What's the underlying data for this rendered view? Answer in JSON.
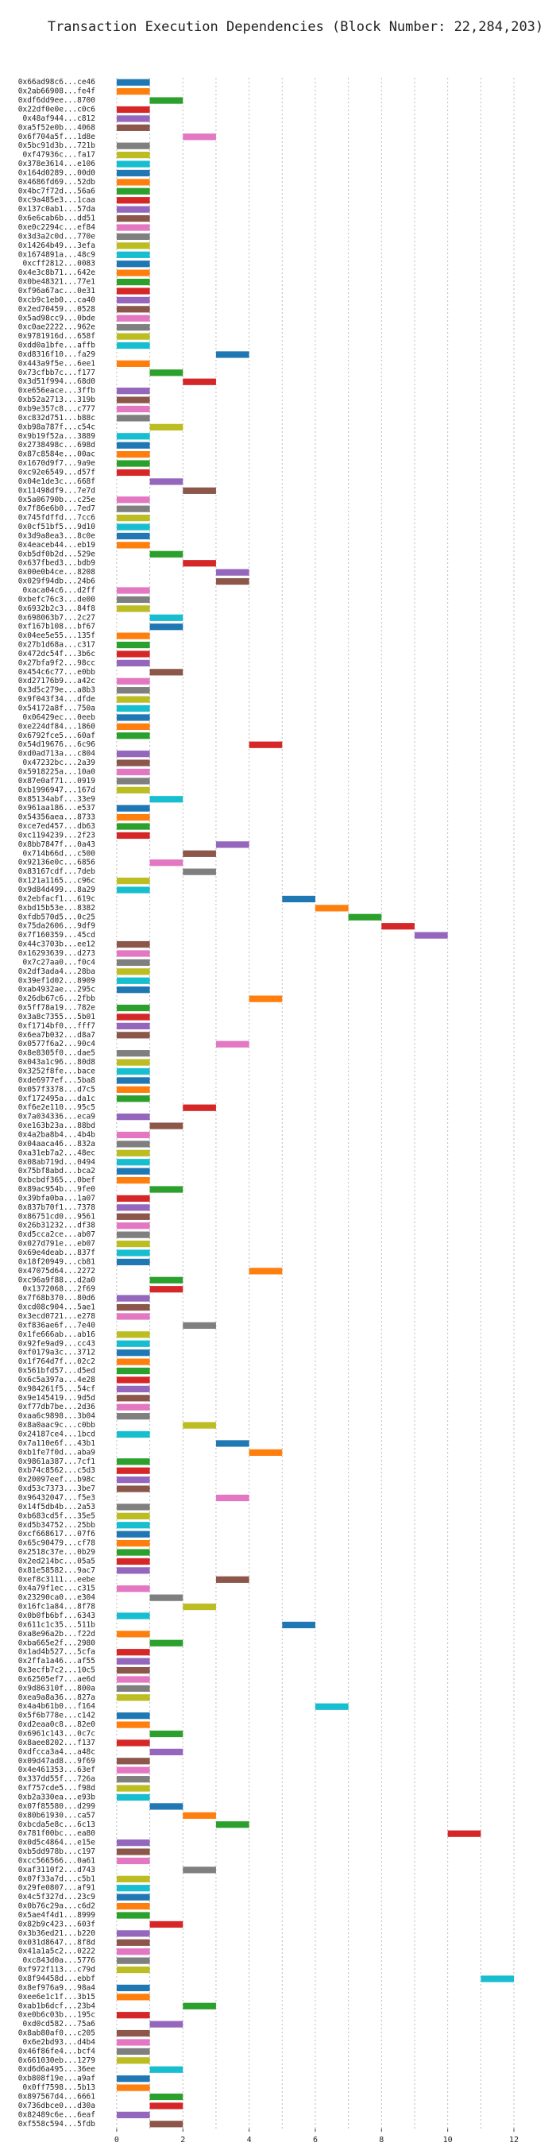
{
  "chart_data": {
    "type": "gantt",
    "title": "Transaction Execution Dependencies (Block Number: 22,284,203)",
    "categories": [
      "0x66ad98c6...ce46",
      "0x2ab66908...fe4f",
      "0xdf6dd9ee...8700",
      "0x22df0e0e...c0c6",
      "0x48af944...c812",
      "0xa5f52e0b...4068",
      "0x6f704a5f...1d8e",
      "0x5bc91d3b...721b",
      "0xf47936c...fa17",
      "0x378e3614...e106",
      "0x164d0289...00d0",
      "0x4686fd69...52db",
      "0x4bc7f72d...56a6",
      "0xc9a485e3...1caa",
      "0x137c0ab1...57da",
      "0x6e6cab6b...dd51",
      "0xe0c2294c...ef84",
      "0x3d3a2c0d...770e",
      "0x14264b49...3efa",
      "0x1674891a...48c9",
      "0xcff2812...0083",
      "0x4e3c8b71...642e",
      "0x0be48321...77e1",
      "0xf96a67ac...0e31",
      "0xcb9c1eb0...ca40",
      "0x2ed70459...0528",
      "0x5ad98cc9...0bde",
      "0xc0ae2222...962e",
      "0x9781916d...658f",
      "0xdd0a1bfe...affb",
      "0xd8316f10...fa29",
      "0x443a9f5e...6ee1",
      "0x73cfbb7c...f177",
      "0x3d51f994...68d0",
      "0xe656eace...3ffb",
      "0xb52a2713...319b",
      "0xb9e357c8...c777",
      "0xc832d751...b88c",
      "0xb98a787f...c54c",
      "0x9b19f52a...3889",
      "0x2738498c...698d",
      "0x87c8584e...00ac",
      "0x1670d9f7...9a9e",
      "0xc92e6549...d57f",
      "0x04e1de3c...668f",
      "0x11498df9...7e7d",
      "0x5a06790b...c25e",
      "0x7f86e6b0...7ed7",
      "0x745fdffd...7cc6",
      "0x0cf51bf5...9d10",
      "0x3d9a8ea3...8c0e",
      "0x4eaceb44...eb19",
      "0xb5df0b2d...529e",
      "0x637fbed3...bdb9",
      "0x00e0b4ce...8208",
      "0x029f94db...24b6",
      "0xaca04c6...d2ff",
      "0xbefc76c3...de00",
      "0x6932b2c3...84f8",
      "0x698063b7...2c27",
      "0xf167b108...bf67",
      "0x04ee5e55...135f",
      "0x27b1d68a...c317",
      "0x472dc54f...3b6c",
      "0x27bfa9f2...98cc",
      "0x454c6c77...e0bb",
      "0xd27176b9...a42c",
      "0x3d5c279e...a8b3",
      "0x9f043f34...dfde",
      "0x54172a8f...750a",
      "0x06429ec...0eeb",
      "0xe224df84...1860",
      "0x6792fce5...60af",
      "0x54d19676...6c96",
      "0xd0ad713a...c804",
      "0x47232bc...2a39",
      "0x5918225a...10a0",
      "0x87e0af71...0919",
      "0xb1996947...167d",
      "0x85134abf...33e9",
      "0x961aa186...e537",
      "0x54356aea...8733",
      "0xce7ed457...db63",
      "0xc1194239...2f23",
      "0x8bb7847f...0a43",
      "0x714b66d...c500",
      "0x92136e0c...6856",
      "0x83167cdf...7deb",
      "0x121a1165...c96c",
      "0x9d84d499...8a29",
      "0x2ebfacf1...619c",
      "0xbd15b53e...8382",
      "0xfdb570d5...0c25",
      "0x75da2606...9df9",
      "0x7f160359...45cd",
      "0x44c3703b...ee12",
      "0x16293639...d273",
      "0x7c27aa0...f0c4",
      "0x2df3ada4...28ba",
      "0x39ef1d02...8909",
      "0xab4932ae...295c",
      "0x26db67c6...2fbb",
      "0x5ff78a19...782e",
      "0x3a8c7355...5b01",
      "0xf1714bf0...fff7",
      "0x6ea7b032...d8a7",
      "0x0577f6a2...90c4",
      "0x8e8305f0...dae5",
      "0x043a1c96...80d8",
      "0x3252f8fe...bace",
      "0xde6977ef...5ba8",
      "0x057f3378...d7c5",
      "0xf172495a...da1c",
      "0xf6e2e110...95c5",
      "0x7a034336...eca9",
      "0xe163b23a...88bd",
      "0x4a2ba8b4...4b4b",
      "0x04aaca46...832a",
      "0xa31eb7a2...48ec",
      "0x08ab719d...0494",
      "0x75bf8abd...bca2",
      "0xbcbdf365...0bef",
      "0x89ac954b...9fe0",
      "0x39bfa0ba...1a07",
      "0x837b70f1...7378",
      "0x86751cd0...9561",
      "0x26b31232...df38",
      "0xd5cca2ce...ab07",
      "0x027d791e...eb07",
      "0x69e4deab...837f",
      "0x18f20949...cb81",
      "0x47075d64...2272",
      "0xc96a9f88...d2a0",
      "0x1372068...2f69",
      "0x7f68b370...80d6",
      "0xcd08c904...5ae1",
      "0x3ecd0721...e278",
      "0xf836ae6f...7e40",
      "0x1fe666ab...ab16",
      "0x92fe9ad9...cc43",
      "0xf0179a3c...3712",
      "0x1f764d7f...02c2",
      "0x561bfd57...d5ed",
      "0x6c5a397a...4e28",
      "0x984261f5...54cf",
      "0x9e145419...9d5d",
      "0xf77db7be...2d36",
      "0xaa6c9898...3b04",
      "0x8a0aac9c...c0bb",
      "0x24187ce4...1bcd",
      "0x7a110e6f...43b1",
      "0xb1fe7f0d...aba9",
      "0x9861a387...7cf1",
      "0xb74c8562...c5d3",
      "0x20097eef...b98c",
      "0xd53c7373...3be7",
      "0x96432047...f5e3",
      "0x14f5db4b...2a53",
      "0xb683cd5f...35e5",
      "0xd5b34752...25bb",
      "0xcf668617...07f6",
      "0x65c90479...cf78",
      "0x2518c37e...0b29",
      "0x2ed214bc...05a5",
      "0x81e58582...9ac7",
      "0xef8c3111...eebe",
      "0x4a79f1ec...c315",
      "0x23290ca0...e304",
      "0x16fc1a84...8f78",
      "0x0b0fb6bf...6343",
      "0x611c1c35...511b",
      "0xa8e96a2b...f22d",
      "0xba665e2f...2980",
      "0x1ad4b527...5cfa",
      "0x2ffa1a46...af55",
      "0x3ecfb7c2...10c5",
      "0x62505ef7...ae6d",
      "0x9d86310f...800a",
      "0xea9a8a36...827a",
      "0x4a4b61b0...f164",
      "0x5f6b778e...c142",
      "0xd2eaa0c8...82e0",
      "0x6961c143...0c7c",
      "0x8aee8202...f137",
      "0xdfcca3a4...a48c",
      "0x09d47ad8...9f69",
      "0x4e461353...63ef",
      "0x337dd55f...726a",
      "0xf757cde5...f98d",
      "0xb2a330ea...e93b",
      "0x07f85580...d299",
      "0x80b61930...ca57",
      "0xbcda5e8c...6c13",
      "0x781f00bc...ea80",
      "0x0d5c4864...e15e",
      "0xb5dd978b...c197",
      "0xcc566566...0a61",
      "0xaf3110f2...d743",
      "0x07f33a7d...c5b1",
      "0x29fe0807...af91",
      "0x4c5f327d...23c9",
      "0x0b76c29a...c6d2",
      "0x5ae4f4d1...8999",
      "0x82b9c423...603f",
      "0x3b36ed21...b220",
      "0x031d8647...8f8d",
      "0x41a1a5c2...0222",
      "0xc843d0a...5776",
      "0xf972f113...c79d",
      "0x8f94458d...ebbf",
      "0x8ef976a9...98a4",
      "0xee6e1c1f...3b15",
      "0xab1b6dcf...23b4",
      "0xe0b6c03b...195c",
      "0xd0cd582...75a6",
      "0x8ab80af0...c205",
      "0x6e2bd93...d4b4",
      "0x46f86fe4...bcf4",
      "0x661030eb...1279",
      "0xd6d6a495...36ee",
      "0xb808f19e...a9af",
      "0x0ff7598...5b13",
      "0x897567d4...6661",
      "0x736dbce0...d30a",
      "0x82489c6e...6eaf",
      "0xf558c594...5fdb"
    ],
    "start": [
      0,
      0,
      1,
      0,
      0,
      0,
      2,
      0,
      0,
      0,
      0,
      0,
      0,
      0,
      0,
      0,
      0,
      0,
      0,
      0,
      0,
      0,
      0,
      0,
      0,
      0,
      0,
      0,
      0,
      0,
      3,
      0,
      1,
      2,
      0,
      0,
      0,
      0,
      1,
      0,
      0,
      0,
      0,
      0,
      1,
      2,
      0,
      0,
      0,
      0,
      0,
      0,
      1,
      2,
      3,
      3,
      0,
      0,
      0,
      1,
      1,
      0,
      0,
      0,
      0,
      1,
      0,
      0,
      0,
      0,
      0,
      0,
      0,
      4,
      0,
      0,
      0,
      0,
      0,
      1,
      0,
      0,
      0,
      0,
      3,
      2,
      1,
      2,
      0,
      0,
      5,
      6,
      7,
      8,
      9,
      0,
      0,
      0,
      0,
      0,
      0,
      4,
      0,
      0,
      0,
      0,
      3,
      0,
      0,
      0,
      0,
      0,
      0,
      2,
      0,
      1,
      0,
      0,
      0,
      0,
      0,
      0,
      1,
      0,
      0,
      0,
      0,
      0,
      0,
      0,
      0,
      4,
      1,
      1,
      0,
      0,
      0,
      2,
      0,
      0,
      0,
      0,
      0,
      0,
      0,
      0,
      0,
      0,
      2,
      0,
      3,
      4,
      0,
      0,
      0,
      0,
      3,
      0,
      0,
      0,
      0,
      0,
      0,
      0,
      0,
      3,
      0,
      1,
      2,
      0,
      5,
      0,
      1,
      0,
      0,
      0,
      0,
      0,
      0,
      6,
      0,
      0,
      1,
      0,
      1,
      0,
      0,
      0,
      0,
      0,
      1,
      2,
      3,
      10,
      0,
      0,
      0,
      2,
      0,
      0,
      0,
      0,
      0,
      1,
      0,
      0,
      0,
      0,
      0,
      11,
      0,
      0,
      2,
      0,
      1,
      0,
      0,
      0,
      0,
      1,
      0,
      0,
      1,
      1,
      0,
      1
    ],
    "end": [
      1,
      1,
      2,
      1,
      1,
      1,
      3,
      1,
      1,
      1,
      1,
      1,
      1,
      1,
      1,
      1,
      1,
      1,
      1,
      1,
      1,
      1,
      1,
      1,
      1,
      1,
      1,
      1,
      1,
      1,
      4,
      1,
      2,
      3,
      1,
      1,
      1,
      1,
      2,
      1,
      1,
      1,
      1,
      1,
      2,
      3,
      1,
      1,
      1,
      1,
      1,
      1,
      2,
      3,
      4,
      4,
      1,
      1,
      1,
      2,
      2,
      1,
      1,
      1,
      1,
      2,
      1,
      1,
      1,
      1,
      1,
      1,
      1,
      5,
      1,
      1,
      1,
      1,
      1,
      2,
      1,
      1,
      1,
      1,
      4,
      3,
      2,
      3,
      1,
      1,
      6,
      7,
      8,
      9,
      10,
      1,
      1,
      1,
      1,
      1,
      1,
      5,
      1,
      1,
      1,
      1,
      4,
      1,
      1,
      1,
      1,
      1,
      1,
      3,
      1,
      2,
      1,
      1,
      1,
      1,
      1,
      1,
      2,
      1,
      1,
      1,
      1,
      1,
      1,
      1,
      1,
      5,
      2,
      2,
      1,
      1,
      1,
      3,
      1,
      1,
      1,
      1,
      1,
      1,
      1,
      1,
      1,
      1,
      3,
      1,
      4,
      5,
      1,
      1,
      1,
      1,
      4,
      1,
      1,
      1,
      1,
      1,
      1,
      1,
      1,
      4,
      1,
      2,
      3,
      1,
      6,
      1,
      2,
      1,
      1,
      1,
      1,
      1,
      1,
      7,
      1,
      1,
      2,
      1,
      2,
      1,
      1,
      1,
      1,
      1,
      2,
      3,
      4,
      11,
      1,
      1,
      1,
      3,
      1,
      1,
      1,
      1,
      1,
      2,
      1,
      1,
      1,
      1,
      1,
      12,
      1,
      1,
      3,
      1,
      2,
      1,
      1,
      1,
      1,
      2,
      1,
      1,
      2,
      2,
      1,
      2
    ],
    "colors": [
      "#1f77b4",
      "#ff7f0e",
      "#2ca02c",
      "#d62728",
      "#9467bd",
      "#8c564b",
      "#e377c2",
      "#7f7f7f",
      "#bcbd22",
      "#17becf"
    ],
    "xlim": [
      -0.55,
      12.6
    ],
    "xticks": [
      0,
      2,
      4,
      6,
      8,
      10,
      12
    ],
    "xminor": [
      1,
      3,
      5,
      7,
      9,
      11
    ],
    "grid": true
  }
}
